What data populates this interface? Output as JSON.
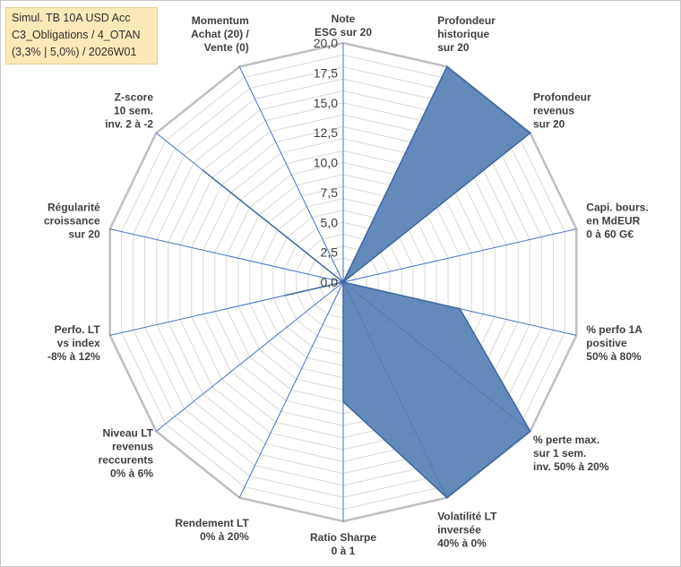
{
  "chart_data": {
    "type": "radar",
    "title_lines": [
      "Simul. TB 10A USD Acc",
      "C3_Obligations / 4_OTAN",
      "(3,3% | 5,0%) / 2026W01"
    ],
    "axes": [
      [
        "Note",
        "ESG sur 20"
      ],
      [
        "Profondeur",
        "historique",
        "sur 20"
      ],
      [
        "Profondeur",
        "revenus",
        "sur 20"
      ],
      [
        "Capi. bours.",
        "en MdEUR",
        "0 à 60 G€"
      ],
      [
        "% perfo 1A",
        "positive",
        "50% à 80%"
      ],
      [
        "% perte max.",
        "sur 1 sem.",
        "inv. 50% à 20%"
      ],
      [
        "Volatilité LT",
        "inversée",
        "40% à 0%"
      ],
      [
        "Ratio Sharpe",
        "0 à 1"
      ],
      [
        "Rendement LT",
        "0% à 20%"
      ],
      [
        "Niveau LT",
        "revenus",
        "reccurents",
        "0% à 6%"
      ],
      [
        "Perfo. LT",
        "vs index",
        "-8% à 12%"
      ],
      [
        "Régularité",
        "croissance",
        "sur 20"
      ],
      [
        "Z-score",
        "10 sem.",
        "inv. 2 à -2"
      ],
      [
        "Momentum",
        "Achat (20) /",
        "Vente (0)"
      ]
    ],
    "series": [
      {
        "values": [
          0,
          20,
          20,
          0,
          10,
          20,
          20,
          10,
          0,
          0,
          5,
          0,
          15,
          0
        ]
      }
    ],
    "rlim": [
      0,
      20
    ],
    "ticks": [
      "0,0",
      "2,5",
      "5,0",
      "7,5",
      "10,0",
      "12,5",
      "15,0",
      "17,5",
      "20,0"
    ],
    "grid": true,
    "colors": {
      "fill": "#4f7ab3",
      "stroke": "#3f67a0",
      "grid": "#d9d9d9",
      "outer": "#bfbfbf",
      "spoke": "#4472c4"
    }
  }
}
